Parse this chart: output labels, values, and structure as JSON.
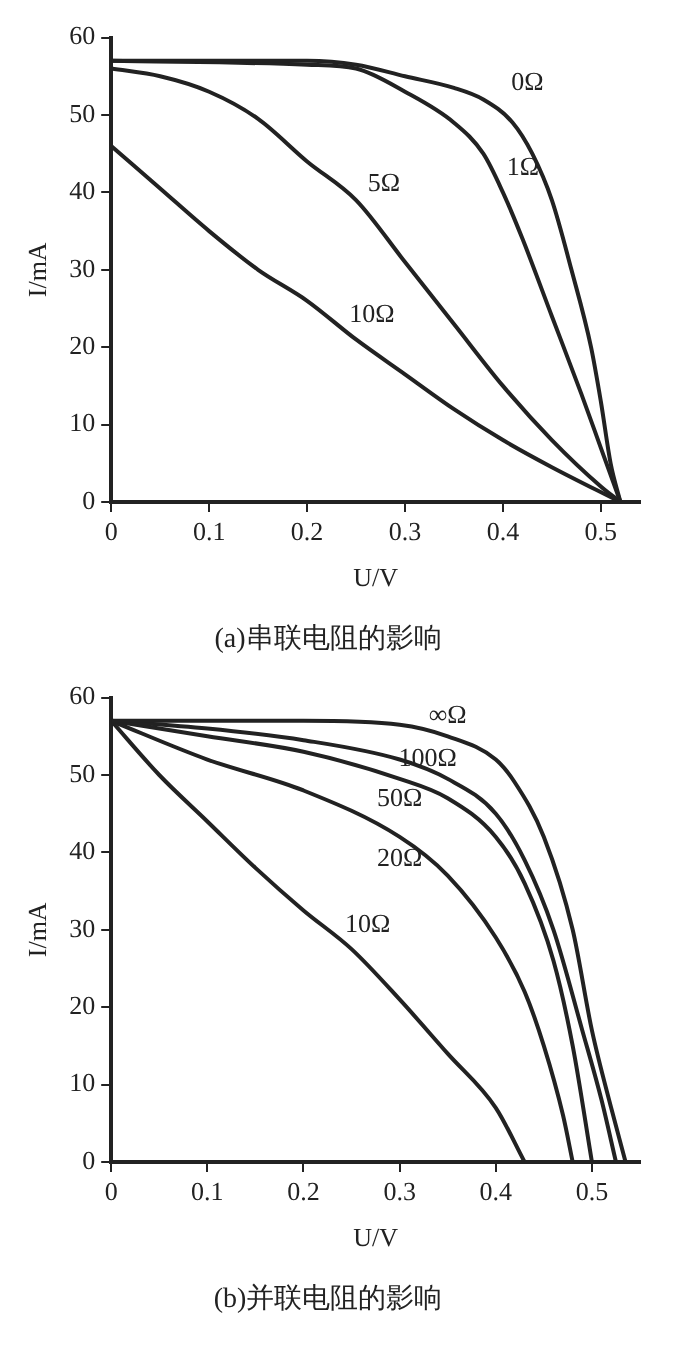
{
  "chart_data": [
    {
      "type": "line",
      "title": "(a)串联电阻的影响",
      "xlabel": "U/V",
      "ylabel": "I/mA",
      "xlim": [
        0,
        0.54
      ],
      "xticks": [
        0,
        0.1,
        0.2,
        0.3,
        0.4,
        0.5
      ],
      "ylim": [
        0,
        60
      ],
      "yticks": [
        0,
        10,
        20,
        30,
        40,
        50,
        60
      ],
      "grid": false,
      "legend": false,
      "marker": "none",
      "line_style": "solid",
      "series": [
        {
          "name": "0Ω",
          "color": "#222222",
          "x": [
            0,
            0.1,
            0.2,
            0.25,
            0.3,
            0.35,
            0.38,
            0.41,
            0.43,
            0.45,
            0.47,
            0.49,
            0.5,
            0.51,
            0.52
          ],
          "values": [
            57,
            57,
            57,
            56.5,
            55,
            53.5,
            52,
            49,
            45,
            39,
            30,
            20,
            13,
            5,
            0
          ]
        },
        {
          "name": "1Ω",
          "color": "#222222",
          "x": [
            0,
            0.2,
            0.25,
            0.3,
            0.35,
            0.38,
            0.4,
            0.42,
            0.45,
            0.48,
            0.5,
            0.52
          ],
          "values": [
            57,
            56.5,
            56,
            53,
            49,
            45,
            40,
            34,
            24,
            14,
            7,
            0
          ]
        },
        {
          "name": "5Ω",
          "color": "#222222",
          "x": [
            0,
            0.05,
            0.1,
            0.15,
            0.2,
            0.25,
            0.3,
            0.35,
            0.4,
            0.45,
            0.5,
            0.52
          ],
          "values": [
            56,
            55,
            53,
            49.5,
            44,
            39,
            31,
            23,
            15,
            8,
            2,
            0
          ]
        },
        {
          "name": "10Ω",
          "color": "#222222",
          "x": [
            0,
            0.05,
            0.1,
            0.15,
            0.2,
            0.25,
            0.3,
            0.35,
            0.4,
            0.45,
            0.52
          ],
          "values": [
            46,
            40.5,
            35,
            30,
            26,
            21,
            16.5,
            12,
            8,
            4.5,
            0
          ]
        }
      ]
    },
    {
      "type": "line",
      "title": "(b)并联电阻的影响",
      "xlabel": "U/V",
      "ylabel": "I/mA",
      "xlim": [
        0,
        0.55
      ],
      "xticks": [
        0,
        0.1,
        0.2,
        0.3,
        0.4,
        0.5
      ],
      "ylim": [
        0,
        60
      ],
      "yticks": [
        0,
        10,
        20,
        30,
        40,
        50,
        60
      ],
      "grid": false,
      "legend": false,
      "marker": "none",
      "line_style": "solid",
      "series": [
        {
          "name": "∞Ω",
          "color": "#222222",
          "x": [
            0,
            0.2,
            0.3,
            0.35,
            0.4,
            0.42,
            0.45,
            0.48,
            0.5,
            0.52,
            0.535
          ],
          "values": [
            57,
            57,
            56.5,
            55,
            52,
            49,
            42,
            30,
            17,
            7,
            0
          ]
        },
        {
          "name": "100Ω",
          "color": "#222222",
          "x": [
            0,
            0.1,
            0.2,
            0.3,
            0.35,
            0.4,
            0.43,
            0.46,
            0.49,
            0.51,
            0.525
          ],
          "values": [
            57,
            56,
            54.5,
            52,
            49.5,
            45,
            39,
            30,
            17,
            8,
            0
          ]
        },
        {
          "name": "50Ω",
          "color": "#222222",
          "x": [
            0,
            0.1,
            0.2,
            0.3,
            0.35,
            0.4,
            0.43,
            0.46,
            0.48,
            0.5
          ],
          "values": [
            57,
            55,
            53,
            49.5,
            47,
            42,
            36,
            26,
            15,
            0
          ]
        },
        {
          "name": "20Ω",
          "color": "#222222",
          "x": [
            0,
            0.1,
            0.2,
            0.3,
            0.35,
            0.4,
            0.43,
            0.45,
            0.47,
            0.48
          ],
          "values": [
            57,
            52,
            48,
            42,
            37,
            29,
            22,
            15,
            6,
            0
          ]
        },
        {
          "name": "10Ω",
          "color": "#222222",
          "x": [
            0,
            0.05,
            0.1,
            0.15,
            0.2,
            0.25,
            0.3,
            0.35,
            0.4,
            0.43
          ],
          "values": [
            57,
            50,
            44,
            38,
            32.5,
            27.5,
            21,
            14,
            7,
            0
          ]
        }
      ]
    }
  ]
}
